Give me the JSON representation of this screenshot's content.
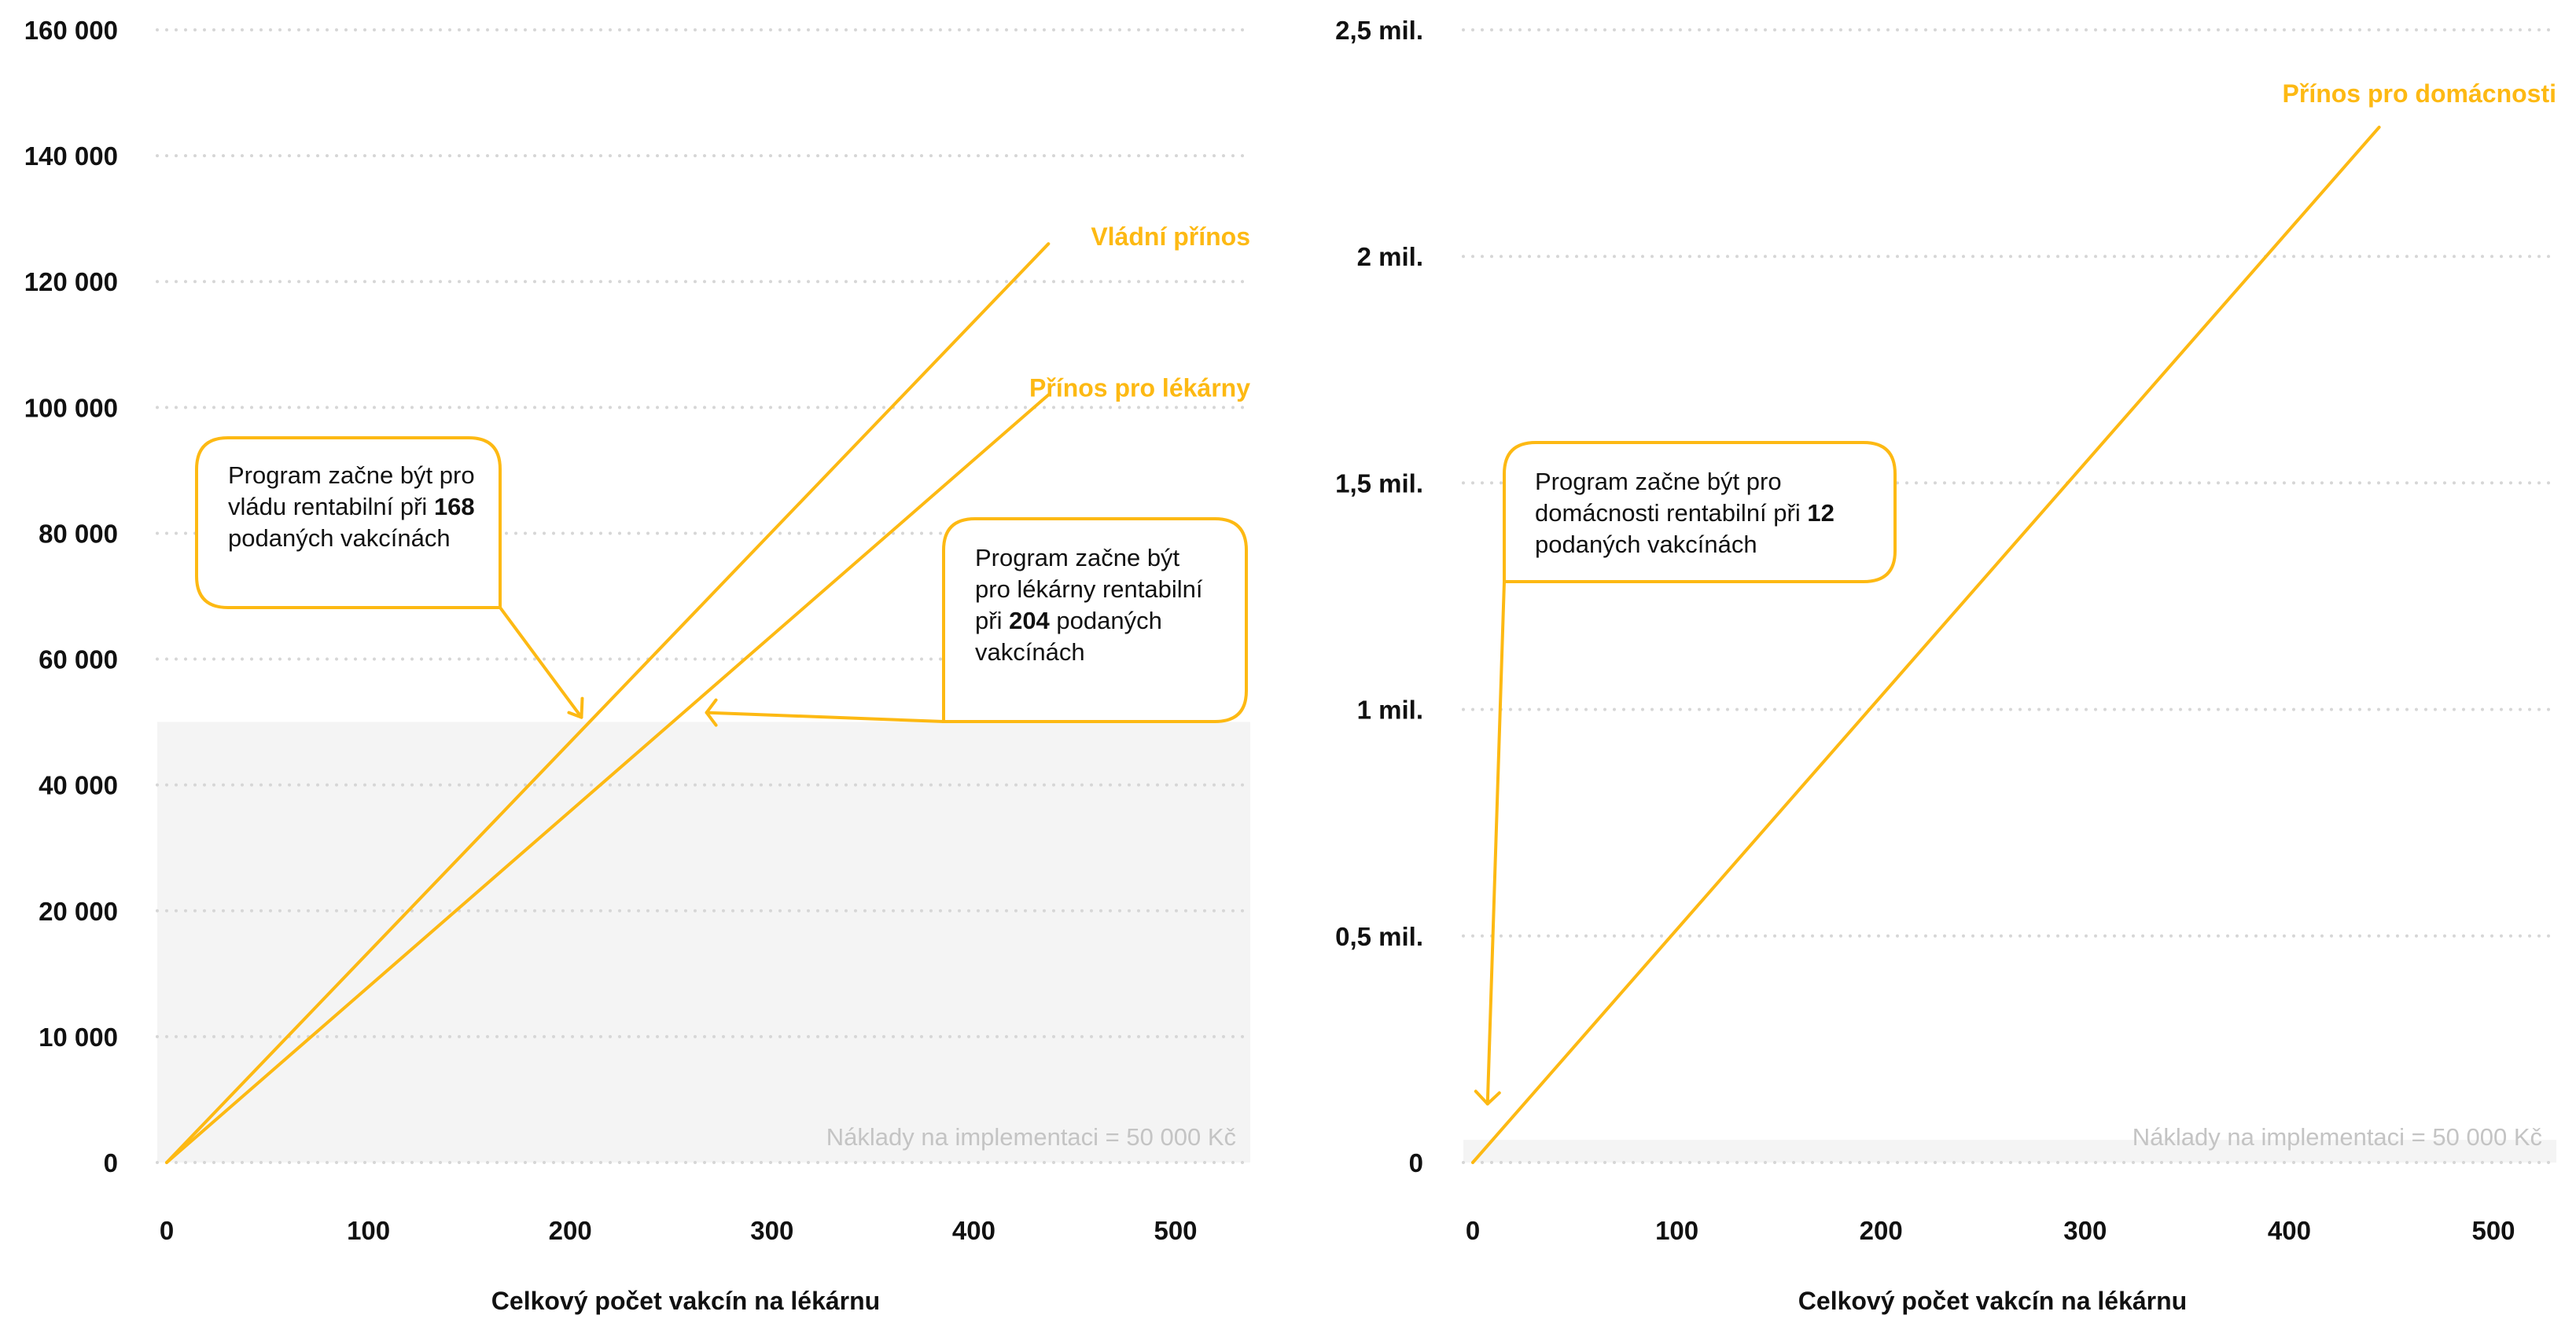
{
  "colors": {
    "accent": "#FDB913",
    "cost_band": "#F4F4F4",
    "grid": "#d6d6d6",
    "text": "#111111",
    "cost_text": "#c4c4c4"
  },
  "chart_data": [
    {
      "type": "line",
      "xlabel": "Celkový počet vakcín na lékárnu",
      "ylabel": "",
      "x_ticks": [
        "0",
        "100",
        "200",
        "300",
        "400",
        "500"
      ],
      "x_tick_values": [
        0,
        100,
        200,
        300,
        400,
        500
      ],
      "xlim": [
        0,
        530
      ],
      "y_ticks": [
        "0",
        "10 000",
        "20 000",
        "40 000",
        "60 000",
        "80 000",
        "100 000",
        "120 000",
        "140 000",
        "160 000"
      ],
      "y_tick_values": [
        0,
        10000,
        20000,
        40000,
        60000,
        80000,
        100000,
        120000,
        140000,
        160000
      ],
      "ylim": [
        0,
        160000
      ],
      "grid": true,
      "cost_band": {
        "value": 50000,
        "label": "Náklady na implementaci = 50 000 Kč"
      },
      "series": [
        {
          "name": "Vládní přínos",
          "x": [
            0,
            437
          ],
          "y": [
            0,
            126000
          ]
        },
        {
          "name": "Přínos pro lékárny",
          "x": [
            0,
            437
          ],
          "y": [
            0,
            102000
          ]
        }
      ],
      "annotations": [
        {
          "text_before": "Program začne být pro vládu rentabilní při ",
          "highlight": "168",
          "text_after": " podaných vakcínách",
          "target": {
            "x": 204,
            "y": 50000
          }
        },
        {
          "text_before": "Program začne být pro lékárny rentabilní při ",
          "highlight": "204",
          "text_after": " podaných vakcínách",
          "target": {
            "x": 266,
            "y": 50000
          }
        }
      ]
    },
    {
      "type": "line",
      "xlabel": "Celkový počet vakcín na lékárnu",
      "ylabel": "",
      "x_ticks": [
        "0",
        "100",
        "200",
        "300",
        "400",
        "500"
      ],
      "x_tick_values": [
        0,
        100,
        200,
        300,
        400,
        500
      ],
      "xlim": [
        0,
        540
      ],
      "y_ticks": [
        "0",
        "0,5 mil.",
        "1 mil.",
        "1,5 mil.",
        "2 mil.",
        "2,5 mil."
      ],
      "y_tick_values": [
        0,
        500000,
        1000000,
        1500000,
        2000000,
        2500000
      ],
      "ylim": [
        0,
        2500000
      ],
      "grid": true,
      "cost_band": {
        "value": 50000,
        "label": "Náklady na implementaci = 50 000 Kč"
      },
      "series": [
        {
          "name": "Přínos pro domácnosti",
          "x": [
            0,
            444
          ],
          "y": [
            0,
            2285000
          ]
        }
      ],
      "annotations": [
        {
          "text_before": "Program začne být pro domácnosti rentabilní při ",
          "highlight": "12",
          "text_after": " podaných vakcínách",
          "target": {
            "x": 8,
            "y": 60000
          }
        }
      ]
    }
  ]
}
